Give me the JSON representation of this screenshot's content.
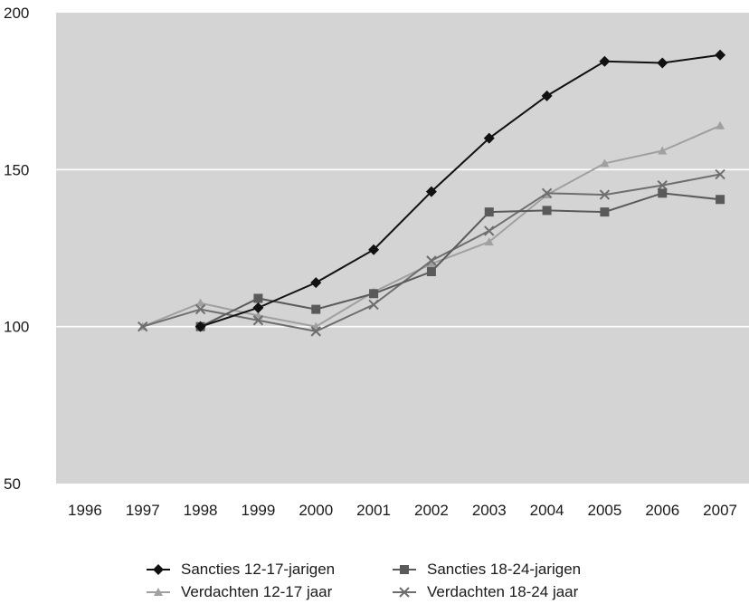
{
  "chart_data": {
    "type": "line",
    "title": "",
    "xlabel": "",
    "ylabel": "",
    "categories": [
      "1996",
      "1997",
      "1998",
      "1999",
      "2000",
      "2001",
      "2002",
      "2003",
      "2004",
      "2005",
      "2006",
      "2007"
    ],
    "y_ticks": [
      "200",
      "150",
      "100",
      "50"
    ],
    "ylim": [
      50,
      200
    ],
    "grid": "horizontal",
    "legend_position": "bottom",
    "plot_background": "#d4d4d4",
    "series": [
      {
        "name": "Sancties 12-17-jarigen",
        "marker": "diamond",
        "color": "#111111",
        "values": [
          null,
          null,
          100,
          106,
          114,
          124.5,
          143,
          160,
          173.5,
          184.5,
          184,
          186.5
        ]
      },
      {
        "name": "Sancties 18-24-jarigen",
        "marker": "square",
        "color": "#5a5a5a",
        "values": [
          null,
          null,
          100,
          109,
          105.5,
          110.5,
          117.5,
          136.5,
          137,
          136.5,
          142.5,
          140.5
        ]
      },
      {
        "name": "Verdachten 12-17 jaar",
        "marker": "triangle",
        "color": "#a0a0a0",
        "values": [
          null,
          100,
          107.5,
          103.5,
          100,
          111,
          120,
          127,
          142,
          152,
          156,
          164
        ]
      },
      {
        "name": "Verdachten 18-24 jaar",
        "marker": "x",
        "color": "#6e6e6e",
        "values": [
          null,
          100,
          105.5,
          102,
          98.5,
          107,
          121,
          130.5,
          142.5,
          142,
          145,
          148.5
        ]
      }
    ]
  }
}
